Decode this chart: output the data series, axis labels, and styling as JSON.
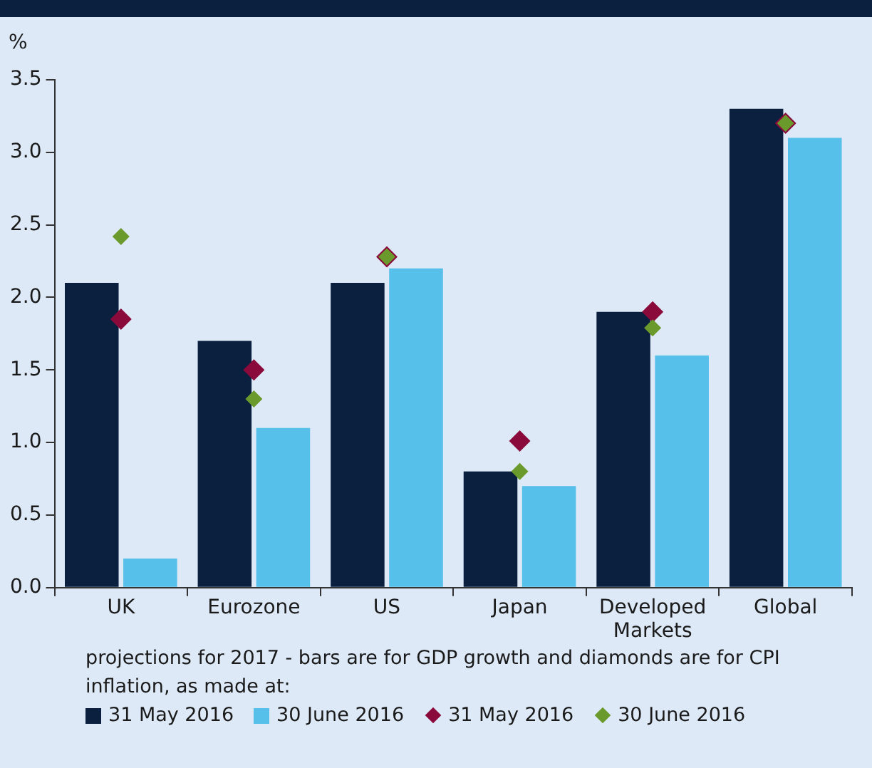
{
  "chart_data": {
    "type": "bar",
    "ylabel": "%",
    "categories": [
      "UK",
      "Eurozone",
      "US",
      "Japan",
      "Developed Markets",
      "Global"
    ],
    "series": [
      {
        "name": "31 May 2016",
        "color": "#0b1f3f",
        "values": [
          2.1,
          1.7,
          2.1,
          0.8,
          1.9,
          3.3
        ]
      },
      {
        "name": "30 June 2016",
        "color": "#56bfea",
        "values": [
          0.2,
          1.1,
          2.2,
          0.7,
          1.6,
          3.1
        ]
      },
      {
        "name": "31 May 2016",
        "type": "scatter",
        "color": "#8a0a3c",
        "values": [
          1.85,
          1.5,
          2.28,
          1.01,
          1.9,
          3.2
        ]
      },
      {
        "name": "30 June 2016",
        "type": "scatter",
        "color": "#6b9a2c",
        "values": [
          2.42,
          1.3,
          2.28,
          0.8,
          1.79,
          3.2
        ]
      }
    ],
    "ylim": [
      0,
      3.5
    ],
    "yticks": [
      {
        "value": 0,
        "label": "0.0"
      },
      {
        "value": 0.5,
        "label": "0.5"
      },
      {
        "value": 1,
        "label": "1.0"
      },
      {
        "value": 1.5,
        "label": "1.5"
      },
      {
        "value": 2,
        "label": "2.0"
      },
      {
        "value": 2.5,
        "label": "2.5"
      },
      {
        "value": 3,
        "label": "3.0"
      },
      {
        "value": 3.5,
        "label": "3.5"
      }
    ],
    "grid": false,
    "legend": "bottom",
    "marker": "diamond",
    "annotations": [
      "projections for 2017 - bars are for GDP growth and diamonds are for CPI inflation, as made at:"
    ]
  }
}
